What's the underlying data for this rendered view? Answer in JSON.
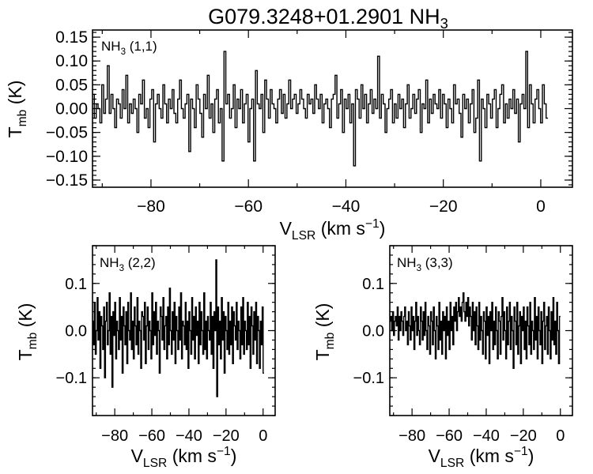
{
  "figure": {
    "title": "G079.3248+01.2901 NH",
    "title_subscript": "3"
  },
  "chart_data": [
    {
      "type": "line",
      "panel_label": "NH",
      "panel_label_sub": "3",
      "panel_label_suffix": " (1,1)",
      "xlabel": "V",
      "xlabel_sub": "LSR",
      "xlabel_unit": " (km s",
      "xlabel_sup": "−1",
      "xlabel_end": ")",
      "ylabel": "T",
      "ylabel_sub": "mb",
      "ylabel_unit": " (K)",
      "xlim": [
        -92,
        6.5
      ],
      "ylim": [
        -0.165,
        0.165
      ],
      "xticks": [
        -80,
        -60,
        -40,
        -20,
        0
      ],
      "xtick_labels": [
        "−80",
        "−60",
        "−40",
        "−20",
        "0"
      ],
      "yticks": [
        -0.15,
        -0.1,
        -0.05,
        0.0,
        0.05,
        0.1,
        0.15
      ],
      "ytick_labels": [
        "−0.15",
        "−0.10",
        "−0.05",
        "0.00",
        "0.05",
        "0.10",
        "0.15"
      ],
      "grid": false,
      "series": [
        {
          "x_start": -92.0,
          "x_step": 0.38,
          "values": [
            0.03,
            -0.02,
            0.01,
            0.0,
            -0.03,
            0.05,
            -0.01,
            0.02,
            0.09,
            -0.01,
            0.03,
            0.0,
            -0.04,
            0.02,
            0.01,
            -0.02,
            0.04,
            0.0,
            0.07,
            -0.03,
            0.01,
            -0.01,
            0.02,
            0.0,
            -0.05,
            0.03,
            0.01,
            0.06,
            -0.02,
            0.0,
            -0.04,
            0.02,
            0.04,
            -0.07,
            0.01,
            0.03,
            0.0,
            -0.02,
            0.05,
            0.01,
            -0.03,
            0.02,
            0.0,
            0.04,
            -0.01,
            -0.03,
            0.02,
            0.06,
            0.0,
            -0.02,
            0.01,
            0.03,
            -0.09,
            0.02,
            0.0,
            -0.04,
            0.05,
            0.02,
            -0.01,
            -0.06,
            0.03,
            0.0,
            0.07,
            -0.02,
            0.01,
            -0.05,
            0.02,
            0.04,
            -0.03,
            0.0,
            -0.11,
            0.12,
            0.01,
            0.03,
            -0.02,
            0.0,
            0.05,
            -0.04,
            0.02,
            0.0,
            0.04,
            -0.03,
            0.01,
            0.03,
            -0.07,
            0.0,
            0.02,
            -0.11,
            0.08,
            0.01,
            0.0,
            0.03,
            -0.05,
            0.06,
            0.02,
            -0.02,
            0.04,
            0.01,
            0.0,
            -0.03,
            0.02,
            0.04,
            -0.01,
            0.03,
            -0.02,
            0.01,
            0.06,
            0.0,
            0.02,
            0.03,
            -0.01,
            0.01,
            0.04,
            0.02,
            0.0,
            -0.02,
            0.03,
            0.01,
            0.02,
            -0.01,
            0.05,
            0.02,
            0.0,
            0.03,
            -0.03,
            0.01,
            0.02,
            0.0,
            -0.04,
            0.02,
            0.03,
            0.07,
            -0.02,
            0.01,
            0.04,
            -0.05,
            0.02,
            0.0,
            0.03,
            -0.03,
            0.01,
            -0.12,
            0.04,
            0.02,
            -0.02,
            0.05,
            0.0,
            0.03,
            -0.03,
            0.01,
            0.04,
            -0.01,
            0.02,
            0.0,
            0.11,
            -0.02,
            0.03,
            0.01,
            -0.05,
            0.0,
            0.02,
            0.04,
            -0.03,
            0.01,
            -0.02,
            0.03,
            0.0,
            0.02,
            -0.04,
            0.01,
            0.05,
            -0.02,
            0.0,
            0.03,
            -0.01,
            0.02,
            0.04,
            -0.05,
            0.01,
            0.0,
            0.06,
            -0.03,
            0.02,
            -0.01,
            0.03,
            0.01,
            0.0,
            0.04,
            -0.02,
            0.03,
            0.01,
            -0.04,
            0.02,
            0.0,
            -0.03,
            0.05,
            0.01,
            0.02,
            -0.01,
            -0.06,
            0.03,
            0.0,
            0.02,
            -0.03,
            0.01,
            0.04,
            -0.05,
            -0.02,
            0.06,
            -0.11,
            0.02,
            0.0,
            -0.04,
            0.03,
            0.01,
            -0.02,
            0.02,
            0.04,
            -0.04,
            0.0,
            0.03,
            0.05,
            -0.03,
            0.01,
            -0.02,
            0.02,
            0.0,
            0.04,
            -0.01,
            0.02,
            -0.07,
            0.01,
            0.03,
            0.0,
            0.12,
            -0.04,
            0.05,
            0.01,
            -0.03,
            0.02,
            0.04,
            0.0,
            -0.03,
            0.05,
            0.01,
            -0.02
          ]
        }
      ]
    },
    {
      "type": "line",
      "panel_label": "NH",
      "panel_label_sub": "3",
      "panel_label_suffix": " (2,2)",
      "xlabel": "V",
      "xlabel_sub": "LSR",
      "xlabel_unit": " (km s",
      "xlabel_sup": "−1",
      "xlabel_end": ")",
      "ylabel": "T",
      "ylabel_sub": "mb",
      "ylabel_unit": " (K)",
      "xlim": [
        -92,
        6.5
      ],
      "ylim": [
        -0.18,
        0.18
      ],
      "xticks": [
        -80,
        -60,
        -40,
        -20,
        0
      ],
      "xtick_labels": [
        "−80",
        "−60",
        "−40",
        "−20",
        "0"
      ],
      "yticks": [
        -0.1,
        0.0,
        0.1
      ],
      "ytick_labels": [
        "−0.1",
        "0.0",
        "0.1"
      ],
      "grid": false,
      "series": [
        {
          "x_start": -92.0,
          "x_step": 0.5,
          "values": [
            0.02,
            -0.03,
            0.06,
            -0.05,
            0.0,
            0.07,
            -0.02,
            0.04,
            -0.08,
            0.03,
            0.01,
            -0.04,
            0.05,
            -0.1,
            0.02,
            0.06,
            -0.03,
            0.0,
            0.08,
            -0.05,
            0.03,
            -0.12,
            0.04,
            -0.01,
            0.06,
            -0.06,
            0.02,
            0.0,
            -0.04,
            0.07,
            -0.02,
            0.03,
            -0.09,
            0.05,
            0.01,
            -0.03,
            0.04,
            -0.07,
            0.06,
            0.0,
            -0.02,
            0.08,
            -0.04,
            0.02,
            -0.06,
            0.05,
            0.01,
            -0.03,
            0.07,
            -0.05,
            0.02,
            0.0,
            -0.08,
            0.04,
            0.03,
            -0.02,
            0.06,
            -0.07,
            0.01,
            0.05,
            -0.04,
            0.02,
            0.0,
            -0.06,
            0.08,
            -0.03,
            0.04,
            -0.01,
            0.06,
            -0.05,
            0.02,
            0.0,
            -0.09,
            0.05,
            0.03,
            -0.02,
            0.07,
            -0.04,
            0.01,
            0.03,
            -0.06,
            0.05,
            -0.03,
            0.09,
            0.0,
            -0.05,
            0.04,
            -0.02,
            0.06,
            -0.07,
            0.03,
            0.0,
            -0.04,
            0.05,
            -0.02,
            0.08,
            -0.06,
            0.02,
            0.01,
            -0.03,
            0.06,
            -0.04,
            0.02,
            -0.08,
            0.04,
            0.0,
            -0.05,
            0.07,
            -0.02,
            0.03,
            -0.06,
            0.05,
            -0.01,
            0.02,
            -0.07,
            0.06,
            -0.03,
            0.04,
            0.0,
            -0.05,
            0.08,
            -0.04,
            0.02,
            -0.06,
            0.03,
            0.0,
            -0.02,
            0.06,
            -0.05,
            0.03,
            -0.08,
            0.04,
            0.0,
            0.15,
            -0.14,
            0.05,
            -0.03,
            0.02,
            -0.06,
            0.07,
            -0.02,
            0.04,
            -0.09,
            0.03,
            0.0,
            -0.04,
            0.06,
            -0.05,
            0.02,
            -0.03,
            0.05,
            -0.07,
            0.04,
            0.01,
            -0.02,
            0.06,
            -0.04,
            0.02,
            0.0,
            -0.06,
            0.05,
            -0.03,
            0.07,
            -0.05,
            0.02,
            0.0,
            -0.04,
            0.06,
            -0.03,
            0.03,
            -0.08,
            0.05,
            0.01,
            -0.05,
            0.04,
            -0.02,
            0.06,
            -0.07,
            0.03,
            0.0,
            -0.08,
            0.02,
            -0.03,
            0.05,
            -0.09
          ]
        }
      ]
    },
    {
      "type": "line",
      "panel_label": "NH",
      "panel_label_sub": "3",
      "panel_label_suffix": " (3,3)",
      "xlabel": "V",
      "xlabel_sub": "LSR",
      "xlabel_unit": " (km s",
      "xlabel_sup": "−1",
      "xlabel_end": ")",
      "ylabel": "T",
      "ylabel_sub": "mb",
      "ylabel_unit": " (K)",
      "xlim": [
        -92,
        6.5
      ],
      "ylim": [
        -0.18,
        0.18
      ],
      "xticks": [
        -80,
        -60,
        -40,
        -20,
        0
      ],
      "xtick_labels": [
        "−80",
        "−60",
        "−40",
        "−20",
        "0"
      ],
      "yticks": [
        -0.1,
        0.0,
        0.1
      ],
      "ytick_labels": [
        "−0.1",
        "0.0",
        "0.1"
      ],
      "grid": false,
      "series": [
        {
          "x_start": -92.0,
          "x_step": 0.5,
          "values": [
            0.02,
            0.03,
            0.0,
            0.04,
            -0.01,
            0.02,
            0.03,
            0.01,
            0.05,
            -0.02,
            0.03,
            0.0,
            0.04,
            0.02,
            -0.01,
            0.03,
            0.05,
            0.0,
            0.02,
            -0.03,
            0.04,
            0.01,
            -0.02,
            0.05,
            0.0,
            0.03,
            -0.04,
            0.02,
            0.06,
            -0.01,
            0.03,
            0.0,
            -0.03,
            0.05,
            0.02,
            -0.02,
            0.04,
            -0.01,
            0.06,
            0.0,
            -0.04,
            0.03,
            0.01,
            -0.05,
            0.04,
            0.02,
            -0.03,
            0.05,
            0.0,
            -0.06,
            0.03,
            0.01,
            -0.04,
            0.06,
            -0.02,
            0.02,
            -0.05,
            0.04,
            0.0,
            0.03,
            -0.06,
            0.05,
            -0.01,
            0.02,
            -0.04,
            0.06,
            0.0,
            0.03,
            -0.03,
            0.05,
            0.02,
            0.06,
            0.0,
            0.04,
            0.07,
            0.03,
            0.05,
            0.02,
            0.06,
            0.08,
            0.04,
            0.02,
            0.06,
            0.03,
            0.07,
            0.01,
            0.05,
            0.03,
            -0.02,
            0.06,
            0.0,
            0.04,
            -0.03,
            0.05,
            0.01,
            -0.04,
            0.06,
            -0.02,
            0.03,
            0.0,
            -0.05,
            0.04,
            0.02,
            -0.06,
            0.05,
            -0.01,
            0.03,
            -0.07,
            0.04,
            0.0,
            0.06,
            -0.04,
            0.02,
            -0.03,
            0.05,
            0.0,
            -0.06,
            0.04,
            0.02,
            -0.05,
            0.03,
            0.07,
            -0.02,
            0.04,
            0.0,
            -0.06,
            0.05,
            -0.03,
            0.02,
            0.06,
            -0.04,
            0.03,
            0.0,
            -0.08,
            0.05,
            0.02,
            -0.03,
            0.06,
            -0.05,
            0.01,
            0.04,
            -0.07,
            0.03,
            0.0,
            0.05,
            -0.04,
            0.02,
            -0.06,
            0.05,
            0.01,
            -0.03,
            0.06,
            -0.05,
            0.02,
            0.0,
            -0.04,
            0.07,
            -0.02,
            0.03,
            -0.06,
            0.05,
            0.0,
            -0.03,
            0.04,
            -0.07,
            0.02,
            0.06,
            -0.04,
            0.01,
            0.03,
            -0.05,
            0.05,
            0.0,
            -0.06,
            0.04,
            -0.02,
            0.07,
            -0.03,
            0.02,
            -0.05,
            0.06,
            0.0,
            -0.07,
            0.03
          ]
        }
      ]
    }
  ]
}
